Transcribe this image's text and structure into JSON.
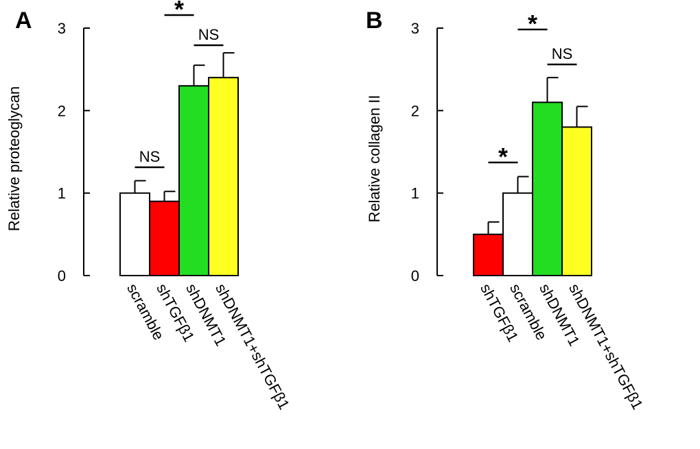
{
  "chart_data": [
    {
      "type": "bar",
      "panel": "A",
      "ylabel": "Relative proteoglycan",
      "ylim": [
        0,
        3
      ],
      "yticks": [
        0,
        1,
        2,
        3
      ],
      "categories": [
        "scramble",
        "shTGFβ1",
        "shDNMT1",
        "shDNMT1+shTGFβ1"
      ],
      "values": [
        1.0,
        0.9,
        2.3,
        2.4
      ],
      "errors": [
        0.15,
        0.12,
        0.25,
        0.3
      ],
      "colors": [
        "#ffffff",
        "#ff0000",
        "#22dd22",
        "#ffff22"
      ],
      "annotations": [
        {
          "from": 0,
          "to": 1,
          "text": "NS"
        },
        {
          "from": 1,
          "to": 2,
          "text": "*"
        },
        {
          "from": 2,
          "to": 3,
          "text": "NS"
        }
      ]
    },
    {
      "type": "bar",
      "panel": "B",
      "ylabel": "Relative collagen II",
      "ylim": [
        0,
        3
      ],
      "yticks": [
        0,
        1,
        2,
        3
      ],
      "categories": [
        "shTGFβ1",
        "scramble",
        "shDNMT1",
        "shDNMT1+shTGFβ1"
      ],
      "values": [
        0.5,
        1.0,
        2.1,
        1.8
      ],
      "errors": [
        0.15,
        0.2,
        0.3,
        0.25
      ],
      "colors": [
        "#ff0000",
        "#ffffff",
        "#22dd22",
        "#ffff22"
      ],
      "annotations": [
        {
          "from": 0,
          "to": 1,
          "text": "*"
        },
        {
          "from": 1,
          "to": 2,
          "text": "*"
        },
        {
          "from": 2,
          "to": 3,
          "text": "NS"
        }
      ]
    }
  ]
}
